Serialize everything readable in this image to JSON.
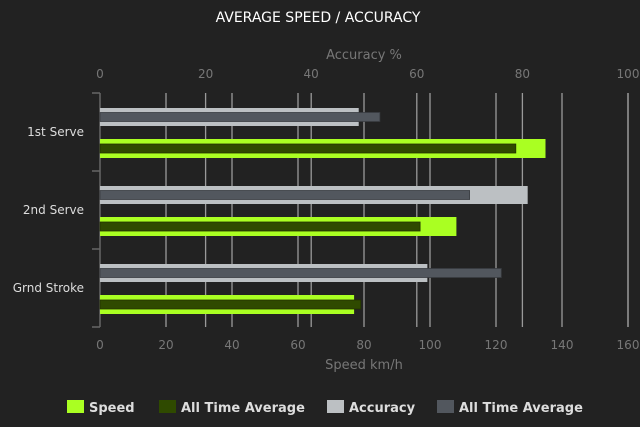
{
  "chart_data": {
    "type": "bar",
    "orientation": "horizontal",
    "title": "AVERAGE SPEED / ACCURACY",
    "categories": [
      "1st Serve",
      "2nd Serve",
      "Grnd Stroke"
    ],
    "x_bottom": {
      "label": "Speed km/h",
      "range": [
        0,
        160
      ],
      "ticks": [
        0,
        20,
        40,
        60,
        80,
        100,
        120,
        140,
        160
      ]
    },
    "x_top": {
      "label": "Accuracy %",
      "range": [
        0,
        100
      ],
      "ticks": [
        0,
        20,
        40,
        60,
        80,
        100
      ]
    },
    "grid": true,
    "legend_position": "bottom",
    "series": [
      {
        "name": "Speed",
        "axis": "speed",
        "color": "#aaff22",
        "values": [
          135,
          108,
          77
        ]
      },
      {
        "name": "All Time Average",
        "axis": "speed",
        "color": "#2f4a00",
        "values": [
          126,
          97,
          79
        ]
      },
      {
        "name": "Accuracy",
        "axis": "accuracy",
        "color": "#bcc0c3",
        "values": [
          49,
          81,
          62
        ]
      },
      {
        "name": "All Time Average",
        "axis": "accuracy",
        "color": "#52575e",
        "values": [
          53,
          70,
          76
        ]
      }
    ]
  }
}
